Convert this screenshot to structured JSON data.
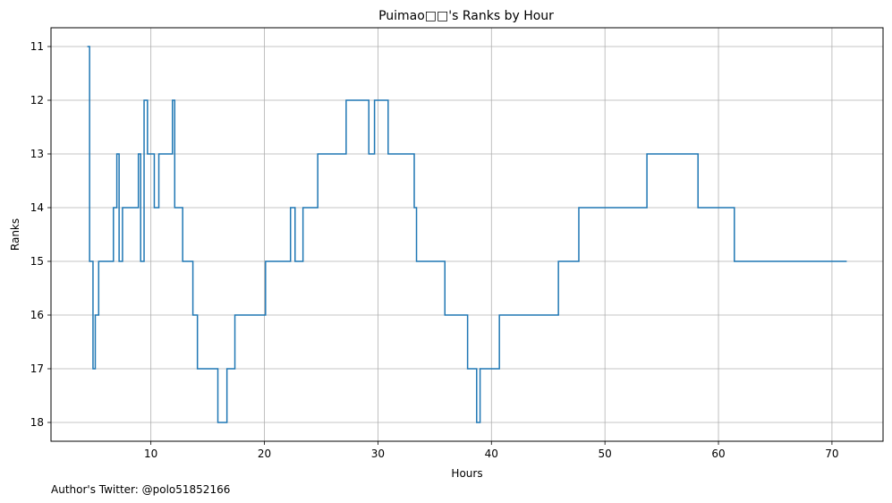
{
  "chart_data": {
    "type": "line",
    "title": "Puimao□□'s Ranks by Hour",
    "xlabel": "Hours",
    "ylabel": "Ranks",
    "xlim": [
      1.2,
      74.5
    ],
    "ylim": [
      18.35,
      10.65
    ],
    "y_inverted": true,
    "grid": true,
    "step": true,
    "x_ticks": [
      10,
      20,
      30,
      40,
      50,
      60,
      70
    ],
    "y_ticks": [
      11,
      12,
      13,
      14,
      15,
      16,
      17,
      18
    ],
    "series": [
      {
        "color": "#1f77b4",
        "points": [
          [
            4.4,
            11
          ],
          [
            4.6,
            15
          ],
          [
            4.9,
            17
          ],
          [
            5.1,
            16
          ],
          [
            5.4,
            15
          ],
          [
            6.7,
            14
          ],
          [
            7.0,
            13
          ],
          [
            7.2,
            15
          ],
          [
            7.5,
            14
          ],
          [
            8.9,
            13
          ],
          [
            9.1,
            15
          ],
          [
            9.4,
            12
          ],
          [
            9.7,
            13
          ],
          [
            10.3,
            14
          ],
          [
            10.7,
            13
          ],
          [
            11.9,
            12
          ],
          [
            12.1,
            14
          ],
          [
            12.8,
            15
          ],
          [
            13.7,
            16
          ],
          [
            14.1,
            17
          ],
          [
            15.9,
            18
          ],
          [
            16.7,
            17
          ],
          [
            17.4,
            16
          ],
          [
            20.1,
            15
          ],
          [
            22.3,
            14
          ],
          [
            22.7,
            15
          ],
          [
            23.4,
            14
          ],
          [
            24.7,
            13
          ],
          [
            27.2,
            12
          ],
          [
            29.2,
            13
          ],
          [
            29.7,
            12
          ],
          [
            30.9,
            13
          ],
          [
            33.2,
            14
          ],
          [
            33.4,
            15
          ],
          [
            35.9,
            16
          ],
          [
            37.9,
            17
          ],
          [
            38.7,
            18
          ],
          [
            39.0,
            17
          ],
          [
            40.7,
            16
          ],
          [
            45.9,
            15
          ],
          [
            47.7,
            14
          ],
          [
            53.7,
            13
          ],
          [
            58.2,
            14
          ],
          [
            61.4,
            15
          ],
          [
            71.3,
            15
          ]
        ]
      }
    ]
  },
  "footer": {
    "text": "Author's Twitter: @polo51852166"
  }
}
